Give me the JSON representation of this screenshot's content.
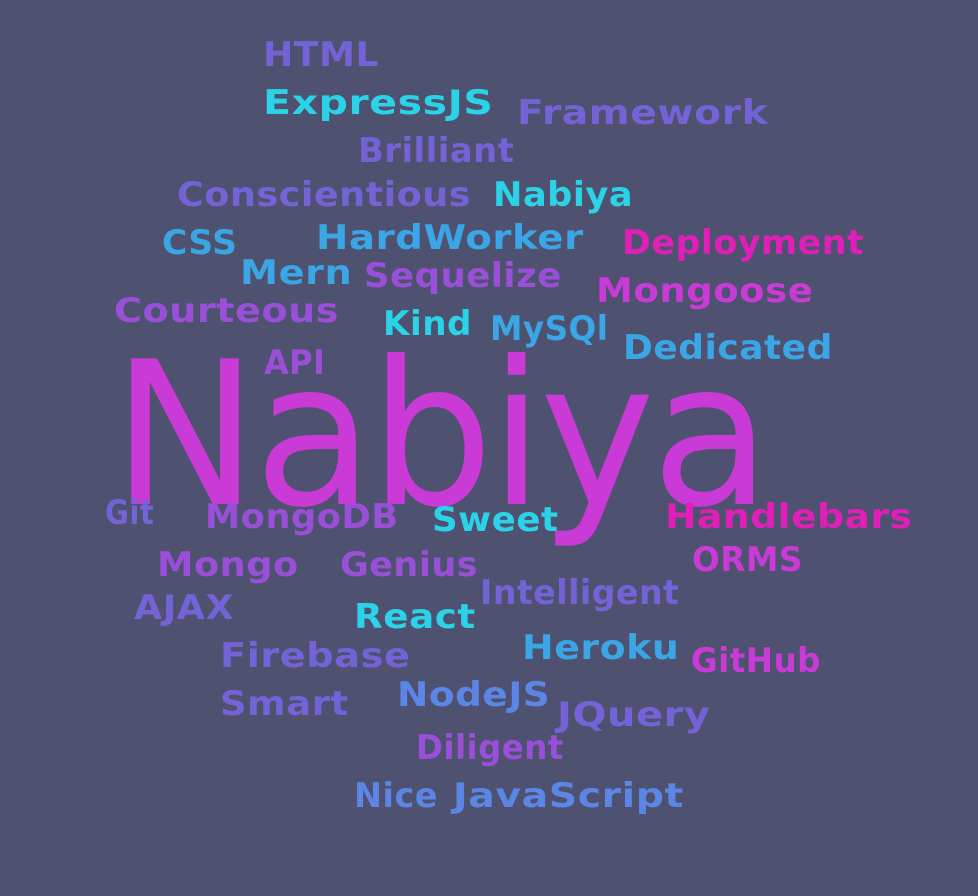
{
  "colors": {
    "background": "#4f5170",
    "cyan": "#2bd3e8",
    "sky_blue": "#3aa6e6",
    "blue": "#5b86e6",
    "violet": "#7463d6",
    "purple": "#9a4fd8",
    "magenta": "#c93ad6",
    "pink": "#e01eb8"
  },
  "words": [
    {
      "text": "HTML",
      "color": "violet"
    },
    {
      "text": "ExpressJS",
      "color": "cyan"
    },
    {
      "text": "Framework",
      "color": "violet"
    },
    {
      "text": "Brilliant",
      "color": "violet"
    },
    {
      "text": "Conscientious",
      "color": "violet"
    },
    {
      "text": "Nabiya",
      "color": "cyan"
    },
    {
      "text": "CSS",
      "color": "sky_blue"
    },
    {
      "text": "HardWorker",
      "color": "sky_blue"
    },
    {
      "text": "Deployment",
      "color": "pink"
    },
    {
      "text": "Mern",
      "color": "sky_blue"
    },
    {
      "text": "Sequelize",
      "color": "purple"
    },
    {
      "text": "Mongoose",
      "color": "magenta"
    },
    {
      "text": "Courteous",
      "color": "purple"
    },
    {
      "text": "Kind",
      "color": "cyan"
    },
    {
      "text": "MySQl",
      "color": "sky_blue"
    },
    {
      "text": "Dedicated",
      "color": "sky_blue"
    },
    {
      "text": "API",
      "color": "purple"
    },
    {
      "text": "Nabiya",
      "color": "magenta"
    },
    {
      "text": "Git",
      "color": "violet"
    },
    {
      "text": "MongoDB",
      "color": "purple"
    },
    {
      "text": "Sweet",
      "color": "cyan"
    },
    {
      "text": "Handlebars",
      "color": "pink"
    },
    {
      "text": "Mongo",
      "color": "purple"
    },
    {
      "text": "Genius",
      "color": "purple"
    },
    {
      "text": "ORMS",
      "color": "magenta"
    },
    {
      "text": "AJAX",
      "color": "violet"
    },
    {
      "text": "Intelligent",
      "color": "violet"
    },
    {
      "text": "React",
      "color": "cyan"
    },
    {
      "text": "Firebase",
      "color": "violet"
    },
    {
      "text": "Heroku",
      "color": "sky_blue"
    },
    {
      "text": "GitHub",
      "color": "magenta"
    },
    {
      "text": "Smart",
      "color": "violet"
    },
    {
      "text": "NodeJS",
      "color": "blue"
    },
    {
      "text": "JQuery",
      "color": "violet"
    },
    {
      "text": "Diligent",
      "color": "purple"
    },
    {
      "text": "Nice",
      "color": "blue"
    },
    {
      "text": "JavaScript",
      "color": "blue"
    }
  ]
}
